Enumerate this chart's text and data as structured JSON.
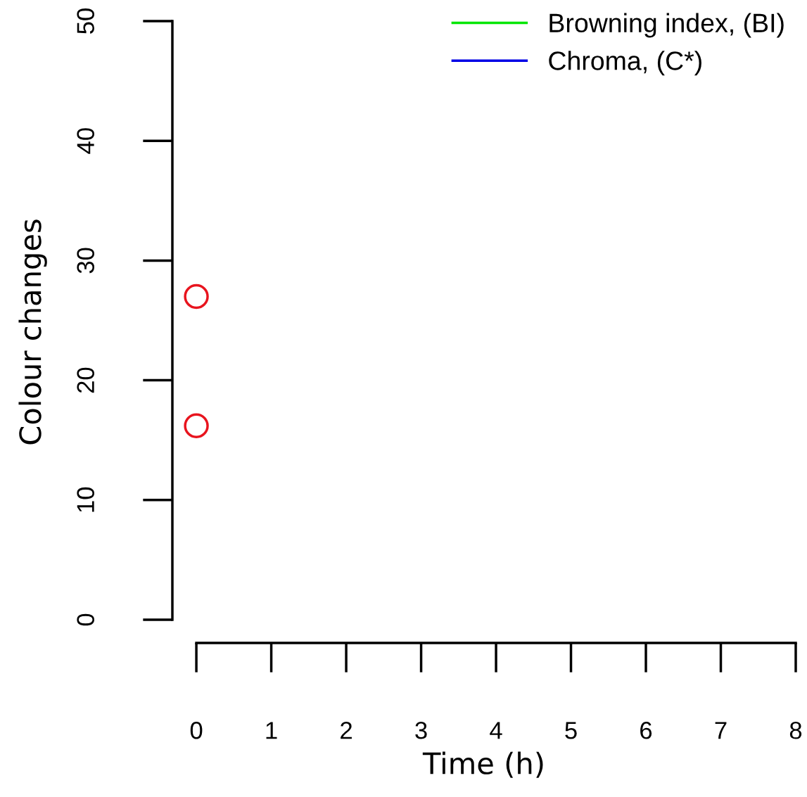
{
  "chart_data": {
    "type": "scatter",
    "xlabel": "Time (h)",
    "ylabel": "Colour changes",
    "xlim": [
      -0.32,
      8
    ],
    "ylim": [
      -1.94,
      50
    ],
    "xticks": [
      0,
      1,
      2,
      3,
      4,
      5,
      6,
      7,
      8
    ],
    "yticks": [
      0,
      10,
      20,
      30,
      40,
      50
    ],
    "grid": false,
    "legend": "top right",
    "marker": "circle",
    "series": [
      {
        "color": "#e8141e",
        "x": [
          0,
          0
        ],
        "values": [
          27.0,
          16.2
        ]
      },
      {
        "type": "line",
        "name": "Browning index, (BI)",
        "color": "#00e600"
      },
      {
        "type": "line",
        "name": "Chroma, (C*)",
        "color": "#0000e6"
      }
    ]
  }
}
